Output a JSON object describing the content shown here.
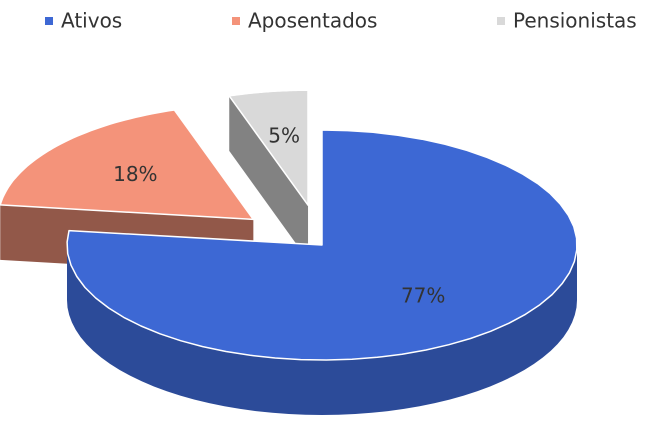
{
  "chart_data": {
    "type": "pie3d",
    "categories": [
      "Ativos",
      "Aposentados",
      "Pensionistas"
    ],
    "values": [
      77,
      18,
      5
    ],
    "value_labels": [
      "77%",
      "18%",
      "5%"
    ],
    "colors": [
      "#3d68d4",
      "#f4937a",
      "#d9d9d9"
    ],
    "legend": "top"
  }
}
